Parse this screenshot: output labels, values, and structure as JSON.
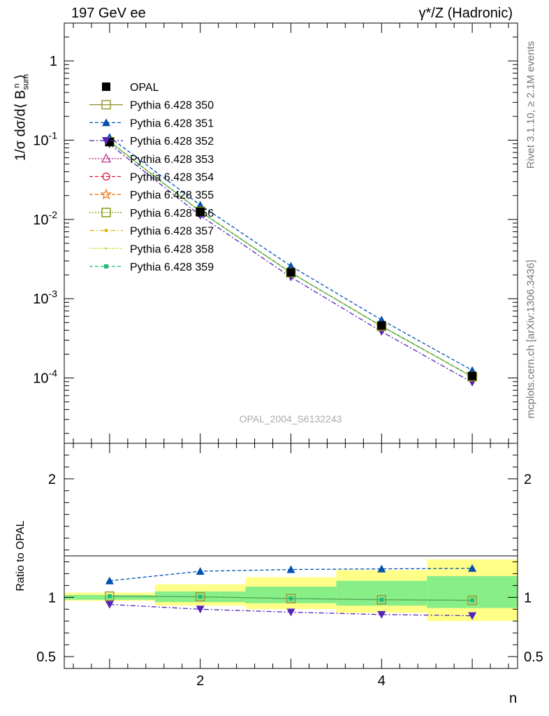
{
  "header": {
    "left_label": "197 GeV ee",
    "right_label": "γ*/Z (Hadronic)"
  },
  "side_labels": {
    "rivet": "Rivet 3.1.10, ≥ 2.1M events",
    "mcplots": "mcplots.cern.ch [arXiv:1306.3436]"
  },
  "watermark": "OPAL_2004_S6132243",
  "chart_data": [
    {
      "type": "line",
      "panel": "main",
      "ylabel": "1/σ dσ/d⟨ B^n_sum ⟩",
      "yscale": "log",
      "ylim": [
        1.5e-05,
        3
      ],
      "xlim": [
        0.5,
        5.5
      ],
      "y_ticklabels": [
        "1",
        "10^-1",
        "10^-2",
        "10^-3",
        "10^-4"
      ],
      "x": [
        1,
        2,
        3,
        4,
        5
      ],
      "series": [
        {
          "name": "OPAL",
          "values": [
            0.095,
            0.0125,
            0.00215,
            0.00046,
            0.000106
          ],
          "color": "#000000",
          "marker": "square-filled"
        },
        {
          "name": "Pythia 6.428 350",
          "values": [
            0.0955,
            0.0126,
            0.00213,
            0.00045,
            0.000104
          ],
          "color": "#999933",
          "marker": "square-open",
          "line": "solid"
        },
        {
          "name": "Pythia 6.428 351",
          "values": [
            0.109,
            0.0152,
            0.00258,
            0.00054,
            0.000125
          ],
          "color": "#0050b0",
          "marker": "triangle-up-filled",
          "line": "dashed"
        },
        {
          "name": "Pythia 6.428 352",
          "values": [
            0.089,
            0.0112,
            0.00187,
            0.000385,
            8.8e-05
          ],
          "color": "#5522bb",
          "marker": "triangle-down-filled",
          "line": "dashdot"
        },
        {
          "name": "Pythia 6.428 353",
          "values": [
            0.0955,
            0.0126,
            0.00213,
            0.00045,
            0.000104
          ],
          "color": "#bb2288",
          "marker": "triangle-up-open",
          "line": "dotted"
        },
        {
          "name": "Pythia 6.428 354",
          "values": [
            0.0955,
            0.0126,
            0.00213,
            0.00045,
            0.000104
          ],
          "color": "#dd1133",
          "marker": "circle-open",
          "line": "dashed"
        },
        {
          "name": "Pythia 6.428 355",
          "values": [
            0.0955,
            0.0126,
            0.00213,
            0.00045,
            0.000104
          ],
          "color": "#ee7711",
          "marker": "star-open",
          "line": "dashed"
        },
        {
          "name": "Pythia 6.428 356",
          "values": [
            0.0955,
            0.0126,
            0.00213,
            0.00045,
            0.000104
          ],
          "color": "#889911",
          "marker": "square-open",
          "line": "dotted"
        },
        {
          "name": "Pythia 6.428 357",
          "values": [
            0.0955,
            0.0126,
            0.00213,
            0.00045,
            0.000104
          ],
          "color": "#ddbb11",
          "marker": "dot",
          "line": "dashdot"
        },
        {
          "name": "Pythia 6.428 358",
          "values": [
            0.0955,
            0.0126,
            0.00213,
            0.00045,
            0.000104
          ],
          "color": "#bbdd22",
          "marker": "dot-small",
          "line": "dotted"
        },
        {
          "name": "Pythia 6.428 359",
          "values": [
            0.0955,
            0.0126,
            0.00213,
            0.00045,
            0.000104
          ],
          "color": "#22bb77",
          "marker": "square-small-filled",
          "line": "dashed"
        }
      ]
    },
    {
      "type": "line",
      "panel": "ratio",
      "ylabel": "Ratio to OPAL",
      "xlabel": "n",
      "ylim": [
        0.4,
        2.3
      ],
      "xlim": [
        0.5,
        5.5
      ],
      "y_ticklabels": [
        "0.5",
        "1",
        "2"
      ],
      "x_ticklabels": [
        "2",
        "4"
      ],
      "x": [
        1,
        2,
        3,
        4,
        5
      ],
      "bands": {
        "x_edges": [
          0.5,
          1.5,
          2.5,
          3.5,
          4.5,
          5.5
        ],
        "yellow": [
          [
            0.97,
            1.04
          ],
          [
            0.93,
            1.11
          ],
          [
            0.9,
            1.17
          ],
          [
            0.87,
            1.23
          ],
          [
            0.8,
            1.32
          ]
        ],
        "green": [
          [
            0.98,
            1.02
          ],
          [
            0.96,
            1.05
          ],
          [
            0.95,
            1.09
          ],
          [
            0.93,
            1.14
          ],
          [
            0.91,
            1.18
          ]
        ]
      },
      "series": [
        {
          "name": "Pythia 6.428 350",
          "values": [
            1.01,
            1.005,
            0.99,
            0.98,
            0.975
          ],
          "color": "#999933",
          "marker": "square-open",
          "line": "solid"
        },
        {
          "name": "Pythia 6.428 351",
          "values": [
            1.14,
            1.22,
            1.235,
            1.24,
            1.245
          ],
          "color": "#0050b0",
          "marker": "triangle-up-filled",
          "line": "dashed"
        },
        {
          "name": "Pythia 6.428 352",
          "values": [
            0.94,
            0.9,
            0.875,
            0.855,
            0.845
          ],
          "color": "#5522bb",
          "marker": "triangle-down-filled",
          "line": "dashdot"
        },
        {
          "name": "Pythia 6.428 359",
          "values": [
            1.01,
            1.005,
            0.99,
            0.98,
            0.975
          ],
          "color": "#22bb77",
          "marker": "square-small-filled",
          "line": "dashed"
        }
      ]
    }
  ]
}
